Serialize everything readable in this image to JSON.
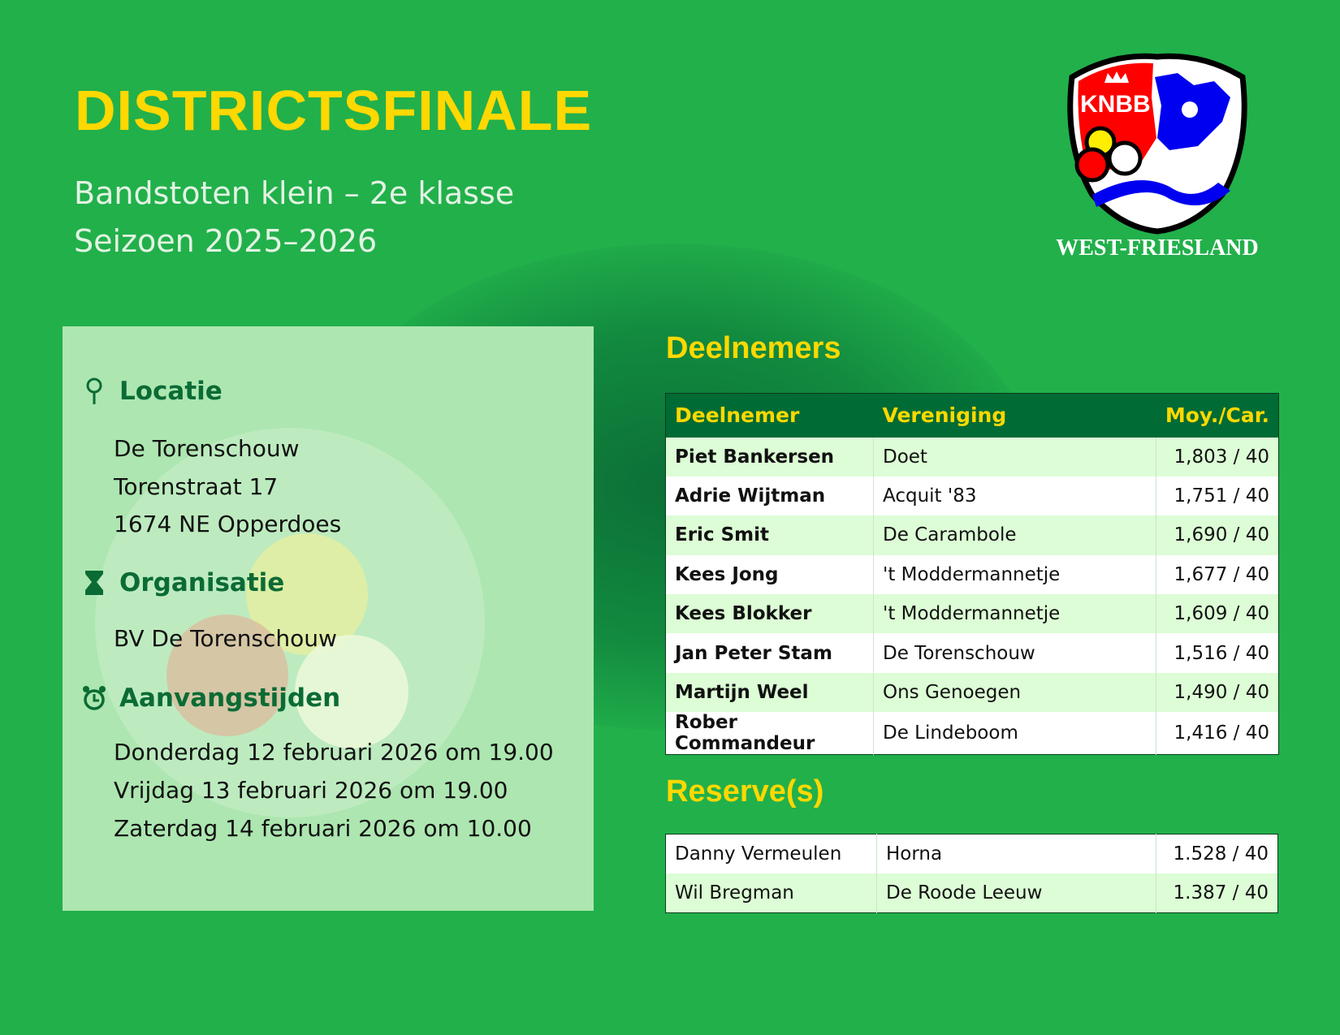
{
  "header": {
    "title": "DISTRICTSFINALE",
    "subtitle": "Bandstoten klein – 2e klasse",
    "season": "Seizoen 2025–2026"
  },
  "logo": {
    "text": "KNBB",
    "region": "WEST-FRIESLAND"
  },
  "info": {
    "location": {
      "heading": "Locatie",
      "icon": "map-pin-icon",
      "lines": [
        "De Torenschouw",
        "Torenstraat 17",
        "1674 NE Opperdoes"
      ]
    },
    "organisation": {
      "heading": "Organisatie",
      "icon": "trophy-icon",
      "lines": [
        "BV De Torenschouw"
      ]
    },
    "times": {
      "heading": "Aanvangstijden",
      "icon": "alarm-clock-icon",
      "lines": [
        "Donderdag 12 februari 2026 om 19.00",
        "Vrijdag 13 februari 2026 om 19.00",
        "Zaterdag 14 februari 2026 om 10.00"
      ]
    }
  },
  "participants": {
    "heading": "Deelnemers",
    "columns": [
      "Deelnemer",
      "Vereniging",
      "Moy./Car."
    ],
    "rows": [
      [
        "Piet Bankersen",
        "Doet",
        "1,803 / 40"
      ],
      [
        "Adrie Wijtman",
        "Acquit '83",
        "1,751 / 40"
      ],
      [
        "Eric Smit",
        "De Carambole",
        "1,690 / 40"
      ],
      [
        "Kees Jong",
        "'t Moddermannetje",
        "1,677 / 40"
      ],
      [
        "Kees Blokker",
        "'t Moddermannetje",
        "1,609 / 40"
      ],
      [
        "Jan Peter Stam",
        "De Torenschouw",
        "1,516 / 40"
      ],
      [
        "Martijn Weel",
        "Ons Genoegen",
        "1,490 / 40"
      ],
      [
        "Rober Commandeur",
        "De Lindeboom",
        "1,416 / 40"
      ]
    ]
  },
  "reserves": {
    "heading": "Reserve(s)",
    "rows": [
      [
        "Danny Vermeulen",
        "Horna",
        "1.528 / 40"
      ],
      [
        "Wil Bregman",
        "De Roode Leeuw",
        "1.387 / 40"
      ]
    ]
  },
  "colors": {
    "background": "#22b04b",
    "accent": "#ffd800",
    "header_row": "#006b35",
    "panel": "#ade6b0"
  }
}
